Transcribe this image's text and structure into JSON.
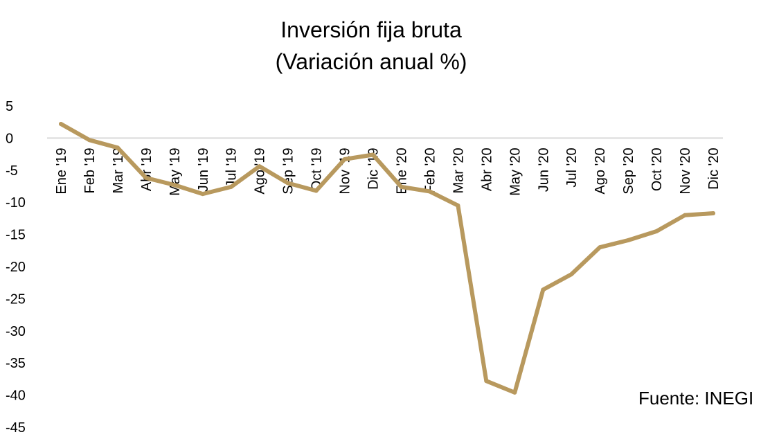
{
  "chart_data": {
    "type": "line",
    "title": "Inversión fija bruta",
    "subtitle": "(Variación anual %)",
    "xlabel": "",
    "ylabel": "",
    "categories": [
      "Ene '19",
      "Feb '19",
      "Mar '19",
      "Abr '19",
      "May '19",
      "Jun '19",
      "Jul '19",
      "Ago '19",
      "Sep '19",
      "Oct '19",
      "Nov '19",
      "Dic '19",
      "Ene '20",
      "Feb '20",
      "Mar '20",
      "Abr '20",
      "May '20",
      "Jun '20",
      "Jul '20",
      "Ago '20",
      "Sep '20",
      "Oct '20",
      "Nov '20",
      "Dic '20"
    ],
    "series": [
      {
        "values": [
          2.2,
          -0.3,
          -1.5,
          -6.2,
          -7.3,
          -8.7,
          -7.6,
          -4.4,
          -7.0,
          -8.2,
          -3.3,
          -2.6,
          -7.6,
          -8.3,
          -10.5,
          -37.8,
          -39.6,
          -23.6,
          -21.2,
          -17.0,
          -15.9,
          -14.5,
          -12.0,
          -11.7
        ],
        "color": "#b8995e"
      }
    ],
    "ylim": [
      -45,
      5
    ],
    "yticks": [
      5,
      0,
      -5,
      -10,
      -15,
      -20,
      -25,
      -30,
      -35,
      -40,
      -45
    ],
    "grid": false,
    "legend": "none",
    "source": "Fuente: INEGI"
  }
}
